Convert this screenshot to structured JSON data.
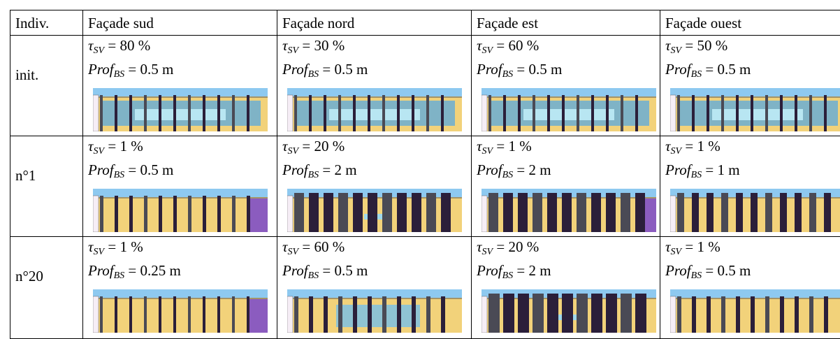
{
  "table": {
    "header": [
      "Indiv.",
      "Façade sud",
      "Façade nord",
      "Façade est",
      "Façade ouest"
    ],
    "tau_symbol": "τ",
    "tau_sub": "SV",
    "prof_symbol": "Prof",
    "prof_sub": "BS",
    "equals": "=",
    "rows": [
      {
        "label": "init.",
        "cells": [
          {
            "tau": "80 %",
            "prof": "0.5 m"
          },
          {
            "tau": "30 %",
            "prof": "0.5 m"
          },
          {
            "tau": "60 %",
            "prof": "0.5 m"
          },
          {
            "tau": "50 %",
            "prof": "0.5 m"
          }
        ]
      },
      {
        "label": "n°1",
        "cells": [
          {
            "tau": "1 %",
            "prof": "0.5 m"
          },
          {
            "tau": "20 %",
            "prof": "2 m"
          },
          {
            "tau": "1 %",
            "prof": "2 m"
          },
          {
            "tau": "1 %",
            "prof": "1 m"
          }
        ]
      },
      {
        "label": "n°20",
        "cells": [
          {
            "tau": "1 %",
            "prof": "0.25 m"
          },
          {
            "tau": "60 %",
            "prof": "0.5 m"
          },
          {
            "tau": "20 %",
            "prof": "2 m"
          },
          {
            "tau": "1 %",
            "prof": "0.5 m"
          }
        ]
      }
    ]
  }
}
